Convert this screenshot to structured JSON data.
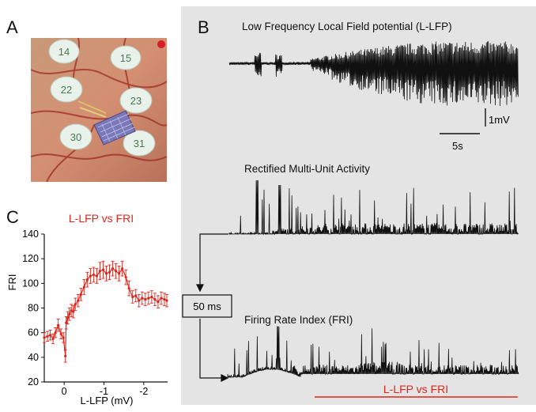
{
  "panels": {
    "a": {
      "letter": "A",
      "electrode_labels": [
        "14",
        "15",
        "22",
        "23",
        "30",
        "31"
      ]
    },
    "b": {
      "letter": "B",
      "lfp_title": "Low Frequency Local Field potential (L-LFP)",
      "mua_title": "Rectified Multi-Unit Activity",
      "fri_title": "Firing Rate Index (FRI)",
      "scale_voltage": "1mV",
      "scale_time": "5s",
      "window_box": "50 ms",
      "range_label": "L-LFP vs FRI",
      "accent_color": "#e2231a"
    },
    "c": {
      "letter": "C"
    }
  },
  "chart_data": {
    "type": "line",
    "title": "L-LFP vs FRI",
    "xlabel": "L-LFP (mV)",
    "ylabel": "FRI",
    "xlim": [
      0.5,
      -2.6
    ],
    "ylim": [
      20,
      140
    ],
    "xticks": [
      0,
      -1,
      -2
    ],
    "xtick_labels": [
      "0",
      "-1",
      "-2"
    ],
    "yticks": [
      20,
      40,
      60,
      80,
      100,
      120,
      140
    ],
    "color": "#e2231a",
    "series": [
      {
        "x": [
          0.5,
          0.42,
          0.35,
          0.28,
          0.22,
          0.15,
          0.08,
          0.02,
          -0.03,
          -0.05,
          -0.09,
          -0.13,
          -0.18,
          -0.23,
          -0.28,
          -0.35,
          -0.42,
          -0.5,
          -0.58,
          -0.66,
          -0.74,
          -0.82,
          -0.9,
          -0.98,
          -1.06,
          -1.14,
          -1.22,
          -1.3,
          -1.38,
          -1.46,
          -1.55,
          -1.63,
          -1.72,
          -1.8,
          -1.88,
          -1.96,
          -2.04,
          -2.12,
          -2.2,
          -2.28,
          -2.36,
          -2.44,
          -2.52,
          -2.58
        ],
        "y": [
          56,
          57,
          58,
          55,
          60,
          66,
          59,
          56,
          41,
          68,
          72,
          75,
          78,
          77,
          83,
          86,
          91,
          97,
          103,
          106,
          107,
          106,
          110,
          111,
          108,
          109,
          112,
          110,
          108,
          112,
          105,
          96,
          89,
          90,
          86,
          88,
          87,
          88,
          89,
          87,
          85,
          88,
          87,
          86
        ],
        "error": [
          4,
          4,
          4,
          4,
          4,
          5,
          4,
          4,
          5,
          5,
          5,
          5,
          5,
          5,
          5,
          5,
          5,
          6,
          6,
          6,
          6,
          6,
          7,
          7,
          6,
          6,
          6,
          6,
          6,
          6,
          6,
          6,
          5,
          5,
          5,
          5,
          5,
          5,
          5,
          5,
          5,
          5,
          5,
          5
        ]
      }
    ]
  }
}
